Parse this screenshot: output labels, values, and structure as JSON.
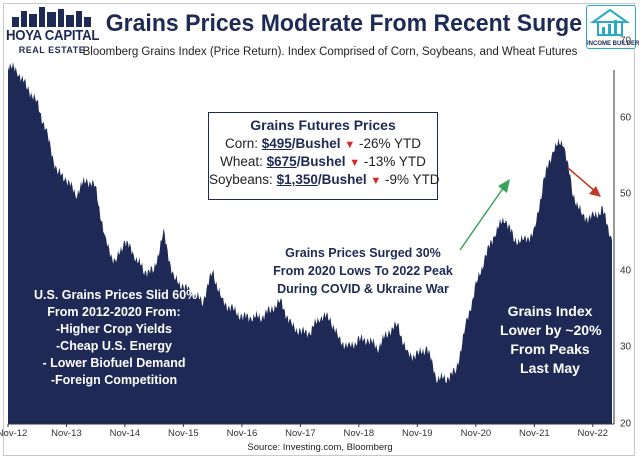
{
  "header": {
    "title": "Grains Prices Moderate From Recent Surge",
    "subtitle": "Bloomberg Grains Index (Price Return). Index Comprised of Corn, Soybeans, and Wheat Futures",
    "logo_left_brand": "HOYA CAPITAL",
    "logo_left_sub": "REAL ESTATE",
    "logo_right_brand": "INCOME BUILDER"
  },
  "price_box": {
    "heading": "Grains Futures Prices",
    "rows": [
      {
        "label": "Corn:",
        "price": "$495",
        "unit": "/Bushel",
        "arrow": "▼",
        "change": "-26% YTD"
      },
      {
        "label": "Wheat:",
        "price": "$675",
        "unit": "/Bushel",
        "arrow": "▼",
        "change": "-13% YTD"
      },
      {
        "label": "Soybeans:",
        "price": "$1,350",
        "unit": "/Bushel",
        "arrow": "▼",
        "change": "-9% YTD"
      }
    ]
  },
  "annotations": {
    "left": [
      "U.S. Grains Prices Slid 60%",
      "From 2012-2020 From:",
      "-Higher Crop Yields",
      "-Cheap U.S. Energy",
      "- Lower Biofuel Demand",
      "-Foreign Competition"
    ],
    "middle": [
      "Grains Prices Surged 30%",
      "From 2020 Lows To 2022 Peak",
      "During COVID & Ukraine War"
    ],
    "right": [
      "Grains Index",
      "Lower by ~20%",
      "From Peaks",
      "Last May"
    ]
  },
  "source": "Source: Investing.com, Bloomberg",
  "colors": {
    "area_fill": "#1e2a55",
    "title_color": "#1e2a55",
    "arrow_up": "#3aa35a",
    "arrow_down": "#c23a2a",
    "down_marker": "#d42a2a"
  },
  "chart_data": {
    "type": "area",
    "title": "Grains Prices Moderate From Recent Surge",
    "xlabel": "",
    "ylabel": "",
    "ylim": [
      20,
      72
    ],
    "yticks": [
      20,
      30,
      40,
      50,
      60,
      70
    ],
    "grid": false,
    "y_axis_position": "right",
    "x_tick_labels": [
      "Nov-12",
      "Nov-13",
      "Nov-14",
      "Nov-15",
      "Nov-16",
      "Nov-17",
      "Nov-18",
      "Nov-19",
      "Nov-20",
      "Nov-21",
      "Nov-22"
    ],
    "series": [
      {
        "dates": [
          "2012-11",
          "2013-01",
          "2013-03",
          "2013-05",
          "2013-07",
          "2013-09",
          "2013-11",
          "2014-01",
          "2014-03",
          "2014-05",
          "2014-07",
          "2014-09",
          "2014-11",
          "2015-01",
          "2015-03",
          "2015-05",
          "2015-07",
          "2015-09",
          "2015-11",
          "2016-01",
          "2016-03",
          "2016-05",
          "2016-07",
          "2016-09",
          "2016-11",
          "2017-01",
          "2017-03",
          "2017-05",
          "2017-07",
          "2017-09",
          "2017-11",
          "2018-01",
          "2018-03",
          "2018-05",
          "2018-07",
          "2018-09",
          "2018-11",
          "2019-01",
          "2019-03",
          "2019-05",
          "2019-07",
          "2019-09",
          "2019-11",
          "2020-01",
          "2020-03",
          "2020-05",
          "2020-07",
          "2020-09",
          "2020-11",
          "2021-01",
          "2021-03",
          "2021-05",
          "2021-07",
          "2021-09",
          "2021-11",
          "2022-01",
          "2022-03",
          "2022-05",
          "2022-07",
          "2022-09",
          "2022-11",
          "2023-01",
          "2023-03"
        ],
        "values": [
          67,
          66,
          64,
          62,
          58,
          53,
          52,
          50,
          52,
          51,
          44,
          41,
          44,
          42,
          40,
          40,
          45,
          39,
          38,
          37,
          36,
          40,
          36,
          35,
          34,
          34,
          34,
          35,
          36,
          33,
          32,
          32,
          34,
          34,
          31,
          30,
          31,
          31,
          30,
          32,
          33,
          29,
          29,
          30,
          26,
          26,
          27,
          33,
          38,
          42,
          45,
          47,
          44,
          44,
          45,
          52,
          56,
          57,
          50,
          47,
          47,
          48,
          44
        ]
      }
    ]
  }
}
